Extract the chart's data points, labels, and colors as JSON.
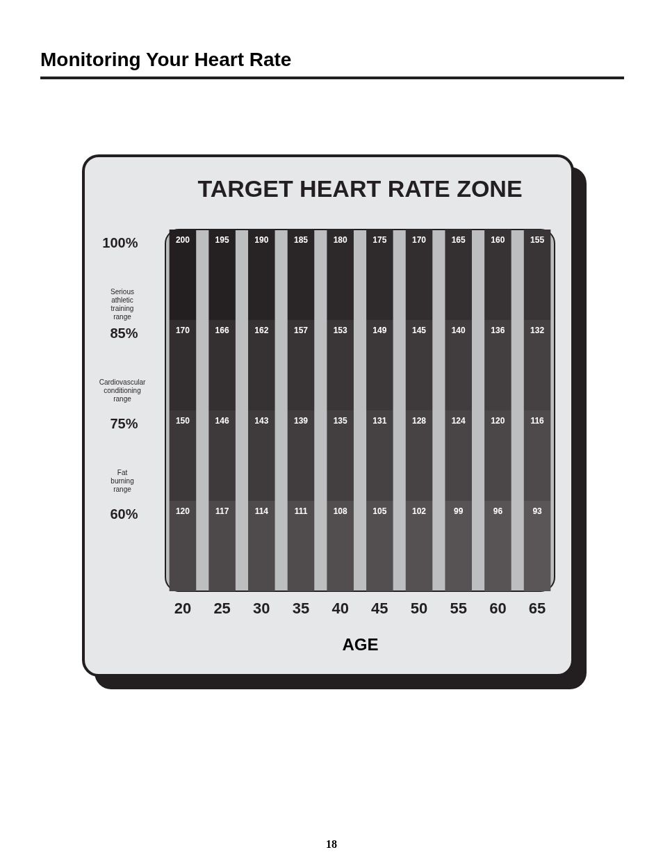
{
  "chart_data": {
    "type": "heatmap",
    "title": "TARGET HEART RATE ZONE",
    "xlabel": "AGE",
    "categories": [
      "20",
      "25",
      "30",
      "35",
      "40",
      "45",
      "50",
      "55",
      "60",
      "65"
    ],
    "y_categories": [
      "100%",
      "85%",
      "75%",
      "60%"
    ],
    "cells": [
      [
        200,
        195,
        190,
        185,
        180,
        175,
        170,
        165,
        160,
        155
      ],
      [
        170,
        166,
        162,
        157,
        153,
        149,
        145,
        140,
        136,
        132
      ],
      [
        150,
        146,
        143,
        139,
        135,
        131,
        128,
        124,
        120,
        116
      ],
      [
        120,
        117,
        114,
        111,
        108,
        105,
        102,
        99,
        96,
        93
      ]
    ],
    "color": "#231f20",
    "data_labels": true,
    "annotations": [
      "Monitoring Your Heart Rate",
      "Serious athletic training range",
      "Cardiovascular conditioning range",
      "Fat burning range",
      "18"
    ]
  }
}
